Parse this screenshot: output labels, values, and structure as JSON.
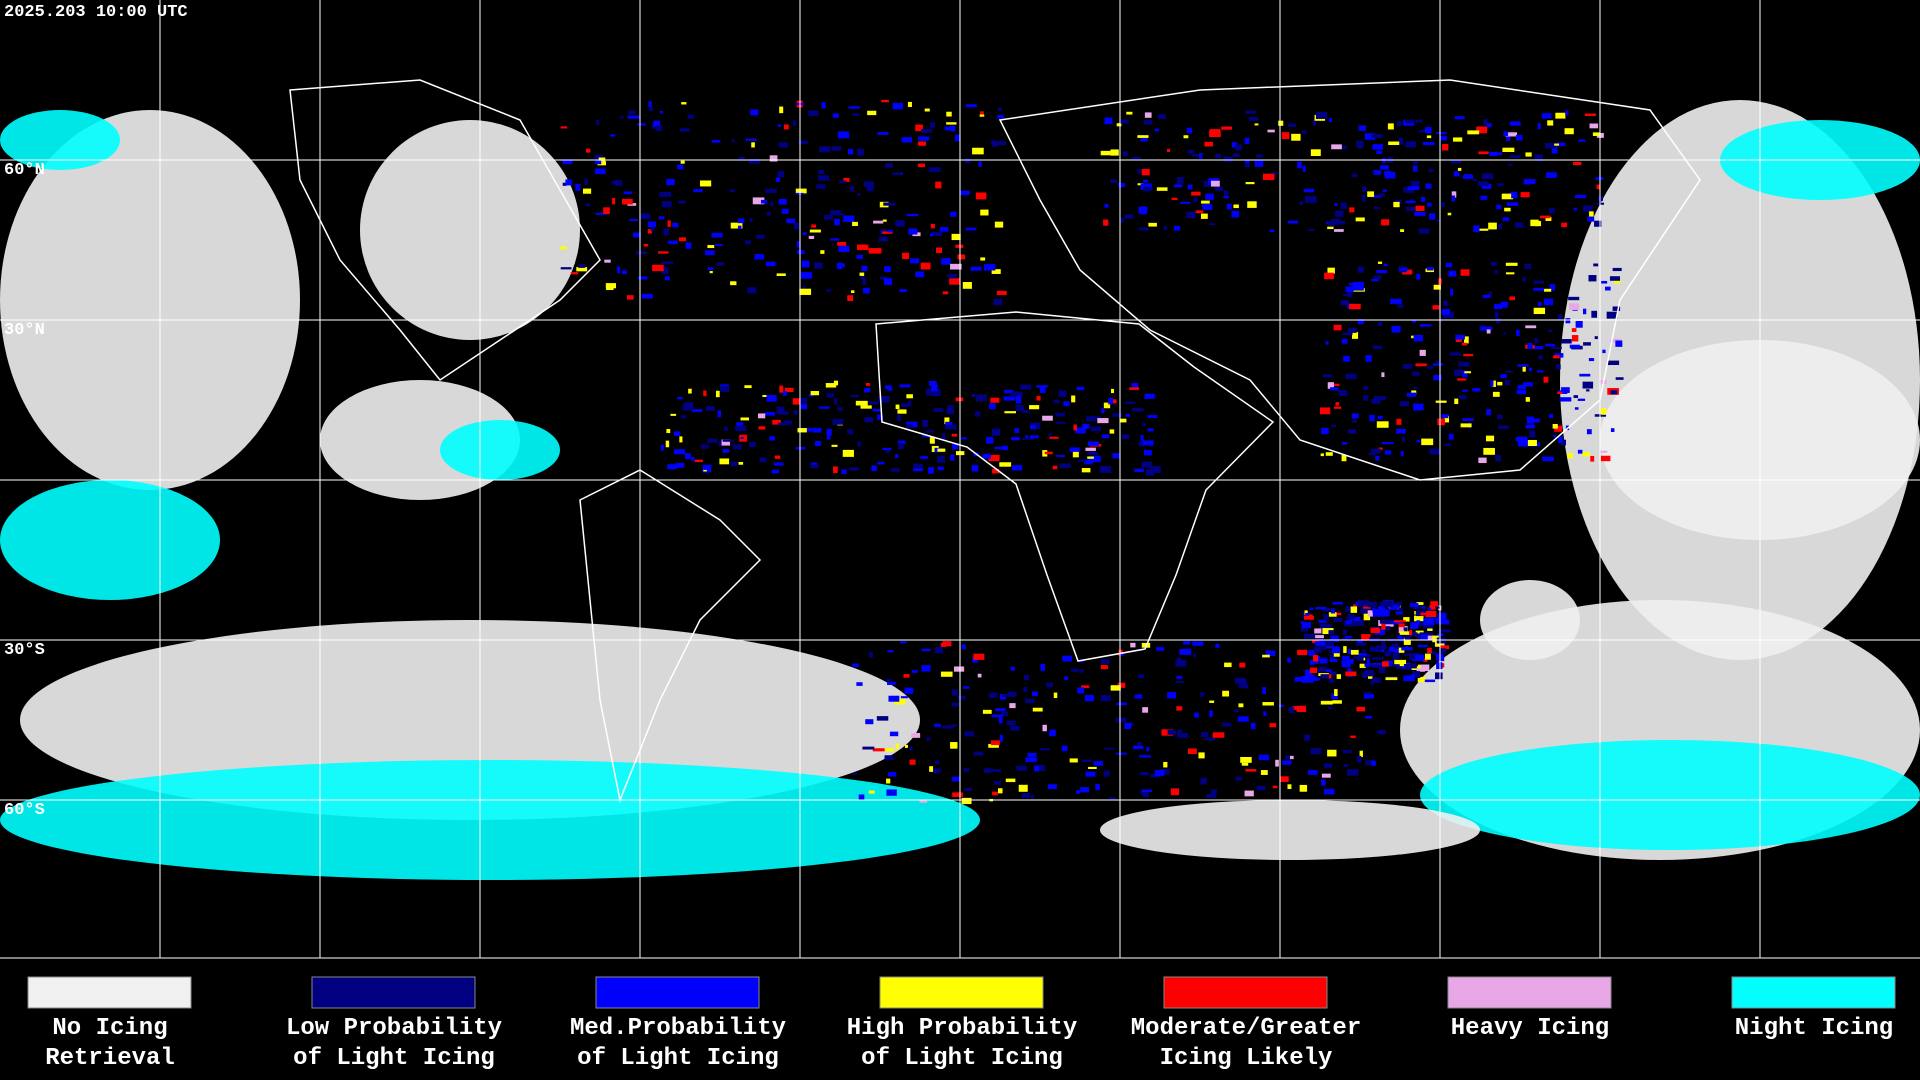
{
  "timestamp": "2025.203 10:00 UTC",
  "latitude_labels": [
    "60°N",
    "30°N",
    "30°S",
    "60°S"
  ],
  "legend": [
    {
      "lines": [
        "No Icing",
        "Retrieval"
      ],
      "color": "#f0f0f0"
    },
    {
      "lines": [
        "Low Probability",
        "of Light Icing"
      ],
      "color": "#000080"
    },
    {
      "lines": [
        "Med.Probability",
        "of Light Icing"
      ],
      "color": "#0000ff"
    },
    {
      "lines": [
        "High Probability",
        "of Light Icing"
      ],
      "color": "#ffff00"
    },
    {
      "lines": [
        "Moderate/Greater",
        "Icing Likely"
      ],
      "color": "#ff0000"
    },
    {
      "lines": [
        "Heavy Icing"
      ],
      "color": "#e8a8e8"
    },
    {
      "lines": [
        "Night Icing"
      ],
      "color": "#00ffff"
    }
  ]
}
